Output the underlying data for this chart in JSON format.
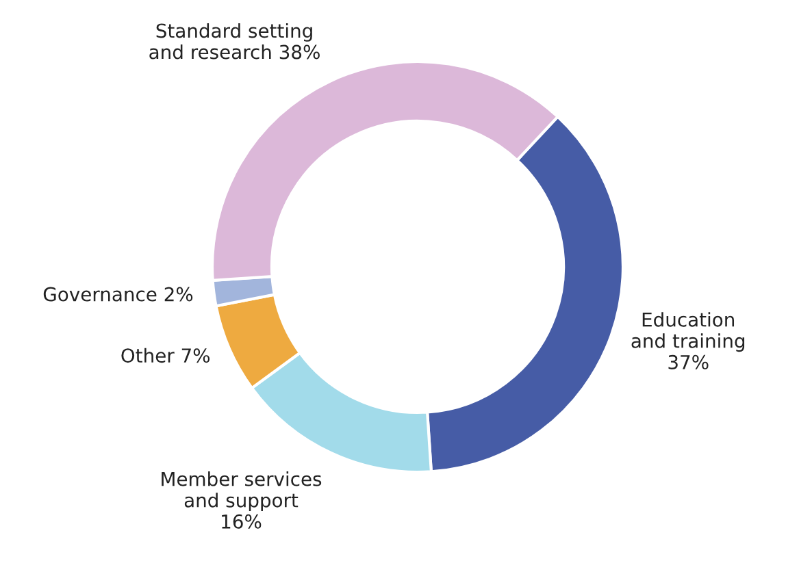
{
  "chart_data": {
    "type": "donut",
    "categories": [
      "Education\nand training\n37%",
      "Member services\nand support\n16%",
      "Other 7%",
      "Governance 2%",
      "Standard setting\nand research 38%"
    ],
    "values": [
      37,
      16,
      7,
      2,
      38
    ],
    "colors": [
      "#465ca6",
      "#a2dbea",
      "#eeaa40",
      "#a2b5dc",
      "#dcb8d9"
    ]
  }
}
